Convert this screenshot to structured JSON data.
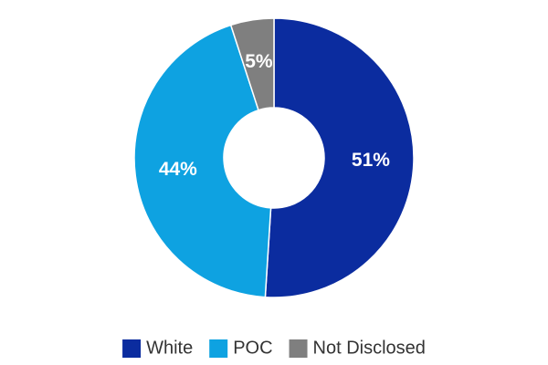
{
  "chart_data": {
    "type": "donut",
    "categories": [
      "White",
      "POC",
      "Not Disclosed"
    ],
    "values": [
      51,
      44,
      5
    ],
    "value_labels": [
      "51%",
      "44%",
      "5%"
    ],
    "colors": [
      "#0b2c9f",
      "#0ea2e1",
      "#7f7f7f"
    ],
    "legend": "bottom"
  }
}
